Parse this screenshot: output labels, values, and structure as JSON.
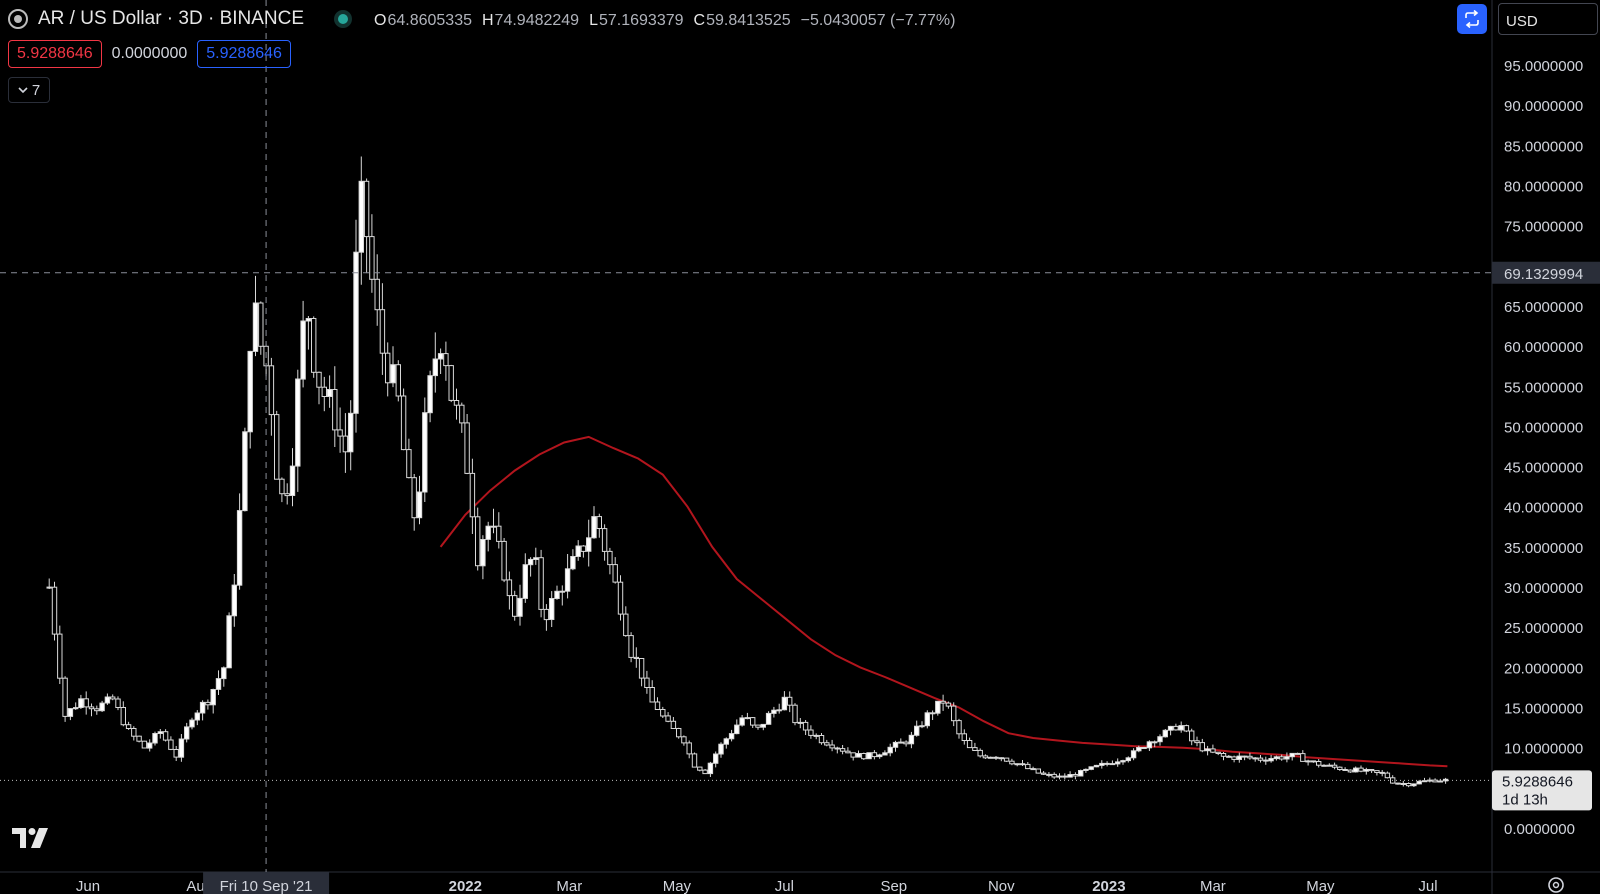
{
  "header": {
    "title": "AR / US Dollar · 3D · BINANCE",
    "ohlc": [
      {
        "key": "O",
        "value": "64.8605335"
      },
      {
        "key": "H",
        "value": "74.9482249"
      },
      {
        "key": "L",
        "value": "57.1693379"
      },
      {
        "key": "C",
        "value": "59.8413525"
      }
    ],
    "change": "−5.0430057 (−7.77%)"
  },
  "values_row": {
    "value_red": "5.9288646",
    "value_plain": "0.0000000",
    "value_blue": "5.9288646"
  },
  "collapse_count": "7",
  "currency_button": "USD",
  "colors": {
    "ma_line": "#b2151d",
    "candle_body": "#ffffff",
    "candle_bear": "#000000",
    "sync_button": "#2962ff"
  },
  "chart_data": {
    "type": "candlestick",
    "title": "",
    "x_tick_labels": [
      "Jun",
      "Au",
      "2022",
      "Mar",
      "May",
      "Jul",
      "Sep",
      "Nov",
      "2023",
      "Mar",
      "May",
      "Jul"
    ],
    "x_tick_dates": [
      "2021-06",
      "2021-08",
      "2022-01",
      "2022-03",
      "2022-05",
      "2022-07",
      "2022-09",
      "2022-11",
      "2023-01",
      "2023-03",
      "2023-05",
      "2023-07"
    ],
    "y_tick_labels": [
      "95.0000000",
      "90.0000000",
      "85.0000000",
      "80.0000000",
      "75.0000000",
      "65.0000000",
      "60.0000000",
      "55.0000000",
      "50.0000000",
      "45.0000000",
      "40.0000000",
      "35.0000000",
      "30.0000000",
      "25.0000000",
      "20.0000000",
      "15.0000000",
      "10.0000000",
      "0.0000000"
    ],
    "y_ticks": [
      95,
      90,
      85,
      80,
      75,
      65,
      60,
      55,
      50,
      45,
      40,
      35,
      30,
      25,
      20,
      15,
      10,
      0
    ],
    "ylim": [
      -5,
      101
    ],
    "crosshair": {
      "date_label": "Fri 10 Sep '21",
      "price_label": "69.1329994",
      "price": 69.133,
      "date": "2021-09-10"
    },
    "last_price": {
      "label": "5.9288646",
      "countdown": "1d 13h",
      "price": 5.929
    },
    "price_path": [
      [
        "2021-05-10",
        30
      ],
      [
        "2021-05-19",
        14
      ],
      [
        "2021-05-28",
        16
      ],
      [
        "2021-06-06",
        15
      ],
      [
        "2021-06-15",
        16
      ],
      [
        "2021-06-24",
        12
      ],
      [
        "2021-07-03",
        10
      ],
      [
        "2021-07-12",
        12
      ],
      [
        "2021-07-21",
        9
      ],
      [
        "2021-07-30",
        14
      ],
      [
        "2021-08-08",
        16
      ],
      [
        "2021-08-17",
        20
      ],
      [
        "2021-08-24",
        33
      ],
      [
        "2021-08-29",
        48
      ],
      [
        "2021-09-02",
        66
      ],
      [
        "2021-09-07",
        60
      ],
      [
        "2021-09-12",
        56
      ],
      [
        "2021-09-15",
        46
      ],
      [
        "2021-09-20",
        40
      ],
      [
        "2021-09-25",
        47
      ],
      [
        "2021-09-30",
        60
      ],
      [
        "2021-10-03",
        66
      ],
      [
        "2021-10-08",
        57
      ],
      [
        "2021-10-13",
        54
      ],
      [
        "2021-10-18",
        52
      ],
      [
        "2021-10-23",
        48
      ],
      [
        "2021-10-27",
        46
      ],
      [
        "2021-11-01",
        76
      ],
      [
        "2021-11-04",
        78
      ],
      [
        "2021-11-09",
        68
      ],
      [
        "2021-11-14",
        60
      ],
      [
        "2021-11-19",
        57
      ],
      [
        "2021-11-24",
        53
      ],
      [
        "2021-11-29",
        43
      ],
      [
        "2021-12-04",
        38
      ],
      [
        "2021-12-09",
        50
      ],
      [
        "2021-12-14",
        58
      ],
      [
        "2021-12-19",
        62
      ],
      [
        "2021-12-24",
        54
      ],
      [
        "2021-12-29",
        50
      ],
      [
        "2022-01-03",
        44
      ],
      [
        "2022-01-08",
        34
      ],
      [
        "2022-01-13",
        38
      ],
      [
        "2022-01-18",
        36
      ],
      [
        "2022-01-23",
        32
      ],
      [
        "2022-01-28",
        26
      ],
      [
        "2022-02-04",
        32
      ],
      [
        "2022-02-09",
        34
      ],
      [
        "2022-02-14",
        26
      ],
      [
        "2022-02-19",
        28
      ],
      [
        "2022-02-24",
        30
      ],
      [
        "2022-03-01",
        32
      ],
      [
        "2022-03-06",
        34
      ],
      [
        "2022-03-11",
        36
      ],
      [
        "2022-03-16",
        39
      ],
      [
        "2022-03-21",
        35
      ],
      [
        "2022-03-26",
        31
      ],
      [
        "2022-03-31",
        27
      ],
      [
        "2022-04-05",
        22
      ],
      [
        "2022-04-10",
        20
      ],
      [
        "2022-04-15",
        16
      ],
      [
        "2022-04-20",
        15
      ],
      [
        "2022-04-25",
        13
      ],
      [
        "2022-04-30",
        12
      ],
      [
        "2022-05-05",
        11
      ],
      [
        "2022-05-10",
        8
      ],
      [
        "2022-05-17",
        7
      ],
      [
        "2022-05-25",
        10
      ],
      [
        "2022-06-01",
        12
      ],
      [
        "2022-06-08",
        14
      ],
      [
        "2022-06-15",
        12
      ],
      [
        "2022-06-22",
        14
      ],
      [
        "2022-07-01",
        16
      ],
      [
        "2022-07-08",
        13
      ],
      [
        "2022-07-15",
        12
      ],
      [
        "2022-07-22",
        11
      ],
      [
        "2022-08-01",
        10
      ],
      [
        "2022-08-10",
        9
      ],
      [
        "2022-08-20",
        9
      ],
      [
        "2022-08-30",
        10
      ],
      [
        "2022-09-10",
        11
      ],
      [
        "2022-09-20",
        14
      ],
      [
        "2022-09-30",
        16
      ],
      [
        "2022-10-07",
        12
      ],
      [
        "2022-10-13",
        10
      ],
      [
        "2022-10-20",
        9
      ],
      [
        "2022-10-30",
        9
      ],
      [
        "2022-11-10",
        8
      ],
      [
        "2022-11-20",
        7
      ],
      [
        "2022-11-25",
        6.6
      ],
      [
        "2022-12-05",
        6.3
      ],
      [
        "2022-12-15",
        6.8
      ],
      [
        "2022-12-25",
        7.6
      ],
      [
        "2023-01-05",
        8.4
      ],
      [
        "2023-01-15",
        9.3
      ],
      [
        "2023-01-25",
        11
      ],
      [
        "2023-02-04",
        12
      ],
      [
        "2023-02-10",
        13
      ],
      [
        "2023-02-16",
        11
      ],
      [
        "2023-02-26",
        9.5
      ],
      [
        "2023-03-08",
        8.8
      ],
      [
        "2023-03-18",
        8.8
      ],
      [
        "2023-03-28",
        8.6
      ],
      [
        "2023-04-07",
        8.8
      ],
      [
        "2023-04-17",
        9.0
      ],
      [
        "2023-04-27",
        8.1
      ],
      [
        "2023-05-07",
        7.6
      ],
      [
        "2023-05-17",
        7.3
      ],
      [
        "2023-05-27",
        7.0
      ],
      [
        "2023-06-06",
        6.7
      ],
      [
        "2023-06-12",
        5.6
      ],
      [
        "2023-06-20",
        5.5
      ],
      [
        "2023-06-28",
        5.8
      ],
      [
        "2023-07-06",
        6.0
      ],
      [
        "2023-07-12",
        5.93
      ]
    ],
    "series": [
      {
        "type": "line",
        "values": [
          [
            "2021-12-18",
            35
          ],
          [
            "2022-01-01",
            39
          ],
          [
            "2022-01-15",
            42
          ],
          [
            "2022-01-29",
            44.5
          ],
          [
            "2022-02-12",
            46.5
          ],
          [
            "2022-02-26",
            48
          ],
          [
            "2022-03-12",
            48.7
          ],
          [
            "2022-03-26",
            47.3
          ],
          [
            "2022-04-09",
            46
          ],
          [
            "2022-04-23",
            44
          ],
          [
            "2022-05-07",
            40
          ],
          [
            "2022-05-21",
            35
          ],
          [
            "2022-06-04",
            31
          ],
          [
            "2022-06-18",
            28.5
          ],
          [
            "2022-07-02",
            26
          ],
          [
            "2022-07-16",
            23.5
          ],
          [
            "2022-07-30",
            21.5
          ],
          [
            "2022-08-13",
            20
          ],
          [
            "2022-08-27",
            18.8
          ],
          [
            "2022-09-10",
            17.5
          ],
          [
            "2022-09-24",
            16.2
          ],
          [
            "2022-10-08",
            15
          ],
          [
            "2022-10-22",
            13.3
          ],
          [
            "2022-11-05",
            11.8
          ],
          [
            "2022-11-19",
            11.2
          ],
          [
            "2022-12-03",
            10.9
          ],
          [
            "2022-12-17",
            10.6
          ],
          [
            "2023-01-01",
            10.4
          ],
          [
            "2023-01-15",
            10.2
          ],
          [
            "2023-01-29",
            10.1
          ],
          [
            "2023-02-12",
            10.0
          ],
          [
            "2023-02-26",
            9.8
          ],
          [
            "2023-03-12",
            9.5
          ],
          [
            "2023-03-26",
            9.3
          ],
          [
            "2023-04-09",
            9.1
          ],
          [
            "2023-04-23",
            8.8
          ],
          [
            "2023-05-07",
            8.6
          ],
          [
            "2023-05-21",
            8.4
          ],
          [
            "2023-06-04",
            8.2
          ],
          [
            "2023-06-18",
            8.0
          ],
          [
            "2023-07-02",
            7.8
          ],
          [
            "2023-07-12",
            7.7
          ]
        ]
      }
    ]
  }
}
